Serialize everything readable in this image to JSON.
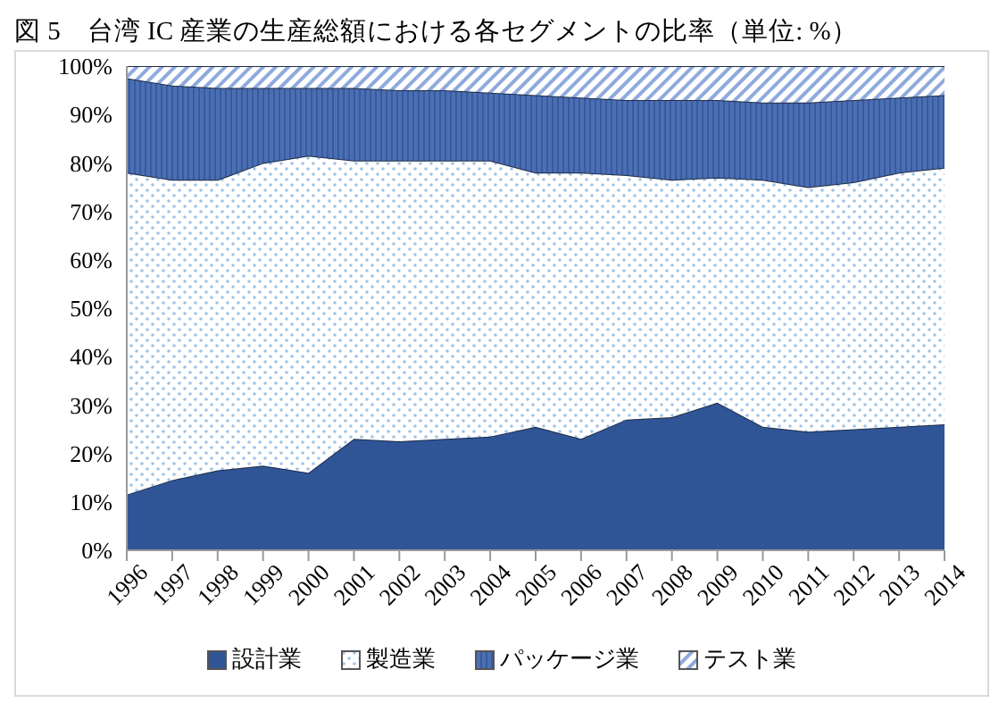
{
  "chart_data": {
    "type": "area",
    "title": "図 5　台湾 IC 産業の生産総額における各セグメントの比率（単位: %）",
    "categories": [
      "1996",
      "1997",
      "1998",
      "1999",
      "2000",
      "2001",
      "2002",
      "2003",
      "2004",
      "2005",
      "2006",
      "2007",
      "2008",
      "2009",
      "2010",
      "2011",
      "2012",
      "2013",
      "2014"
    ],
    "stacked": true,
    "ylim": [
      0,
      100
    ],
    "yticks": [
      {
        "value": 0,
        "label": "0%"
      },
      {
        "value": 10,
        "label": "10%"
      },
      {
        "value": 20,
        "label": "20%"
      },
      {
        "value": 30,
        "label": "30%"
      },
      {
        "value": 40,
        "label": "40%"
      },
      {
        "value": 50,
        "label": "50%"
      },
      {
        "value": 60,
        "label": "60%"
      },
      {
        "value": 70,
        "label": "70%"
      },
      {
        "value": 80,
        "label": "80%"
      },
      {
        "value": 90,
        "label": "90%"
      },
      {
        "value": 100,
        "label": "100%"
      }
    ],
    "legend": "bottom",
    "grid": false,
    "series": [
      {
        "name": "設計業",
        "color": "#2f5597",
        "values": [
          11.5,
          14.5,
          16.5,
          17.5,
          16,
          23,
          22.5,
          23,
          23.5,
          25.5,
          23,
          27,
          27.5,
          30.5,
          25.5,
          24.5,
          25,
          25.5,
          26
        ]
      },
      {
        "name": "製造業",
        "color": "#9dc3e6",
        "values": [
          66.5,
          62,
          60,
          62.5,
          65.5,
          57.5,
          58,
          57.5,
          57,
          52.5,
          55,
          50.5,
          49,
          46.5,
          51,
          50.5,
          51,
          52.5,
          53
        ]
      },
      {
        "name": "パッケージ業",
        "color": "#4a6fb5",
        "values": [
          19.5,
          19.5,
          19,
          15.5,
          14,
          15,
          14.5,
          14.5,
          14,
          16,
          15.5,
          15.5,
          16.5,
          16,
          16,
          17.5,
          17,
          15.5,
          15
        ]
      },
      {
        "name": "テスト業",
        "color": "#8faadc",
        "values": [
          2.5,
          4,
          4.5,
          4.5,
          4.5,
          4.5,
          5,
          5,
          5.5,
          6,
          6.5,
          7,
          7,
          7,
          7.5,
          7.5,
          7,
          6.5,
          6
        ]
      }
    ]
  }
}
